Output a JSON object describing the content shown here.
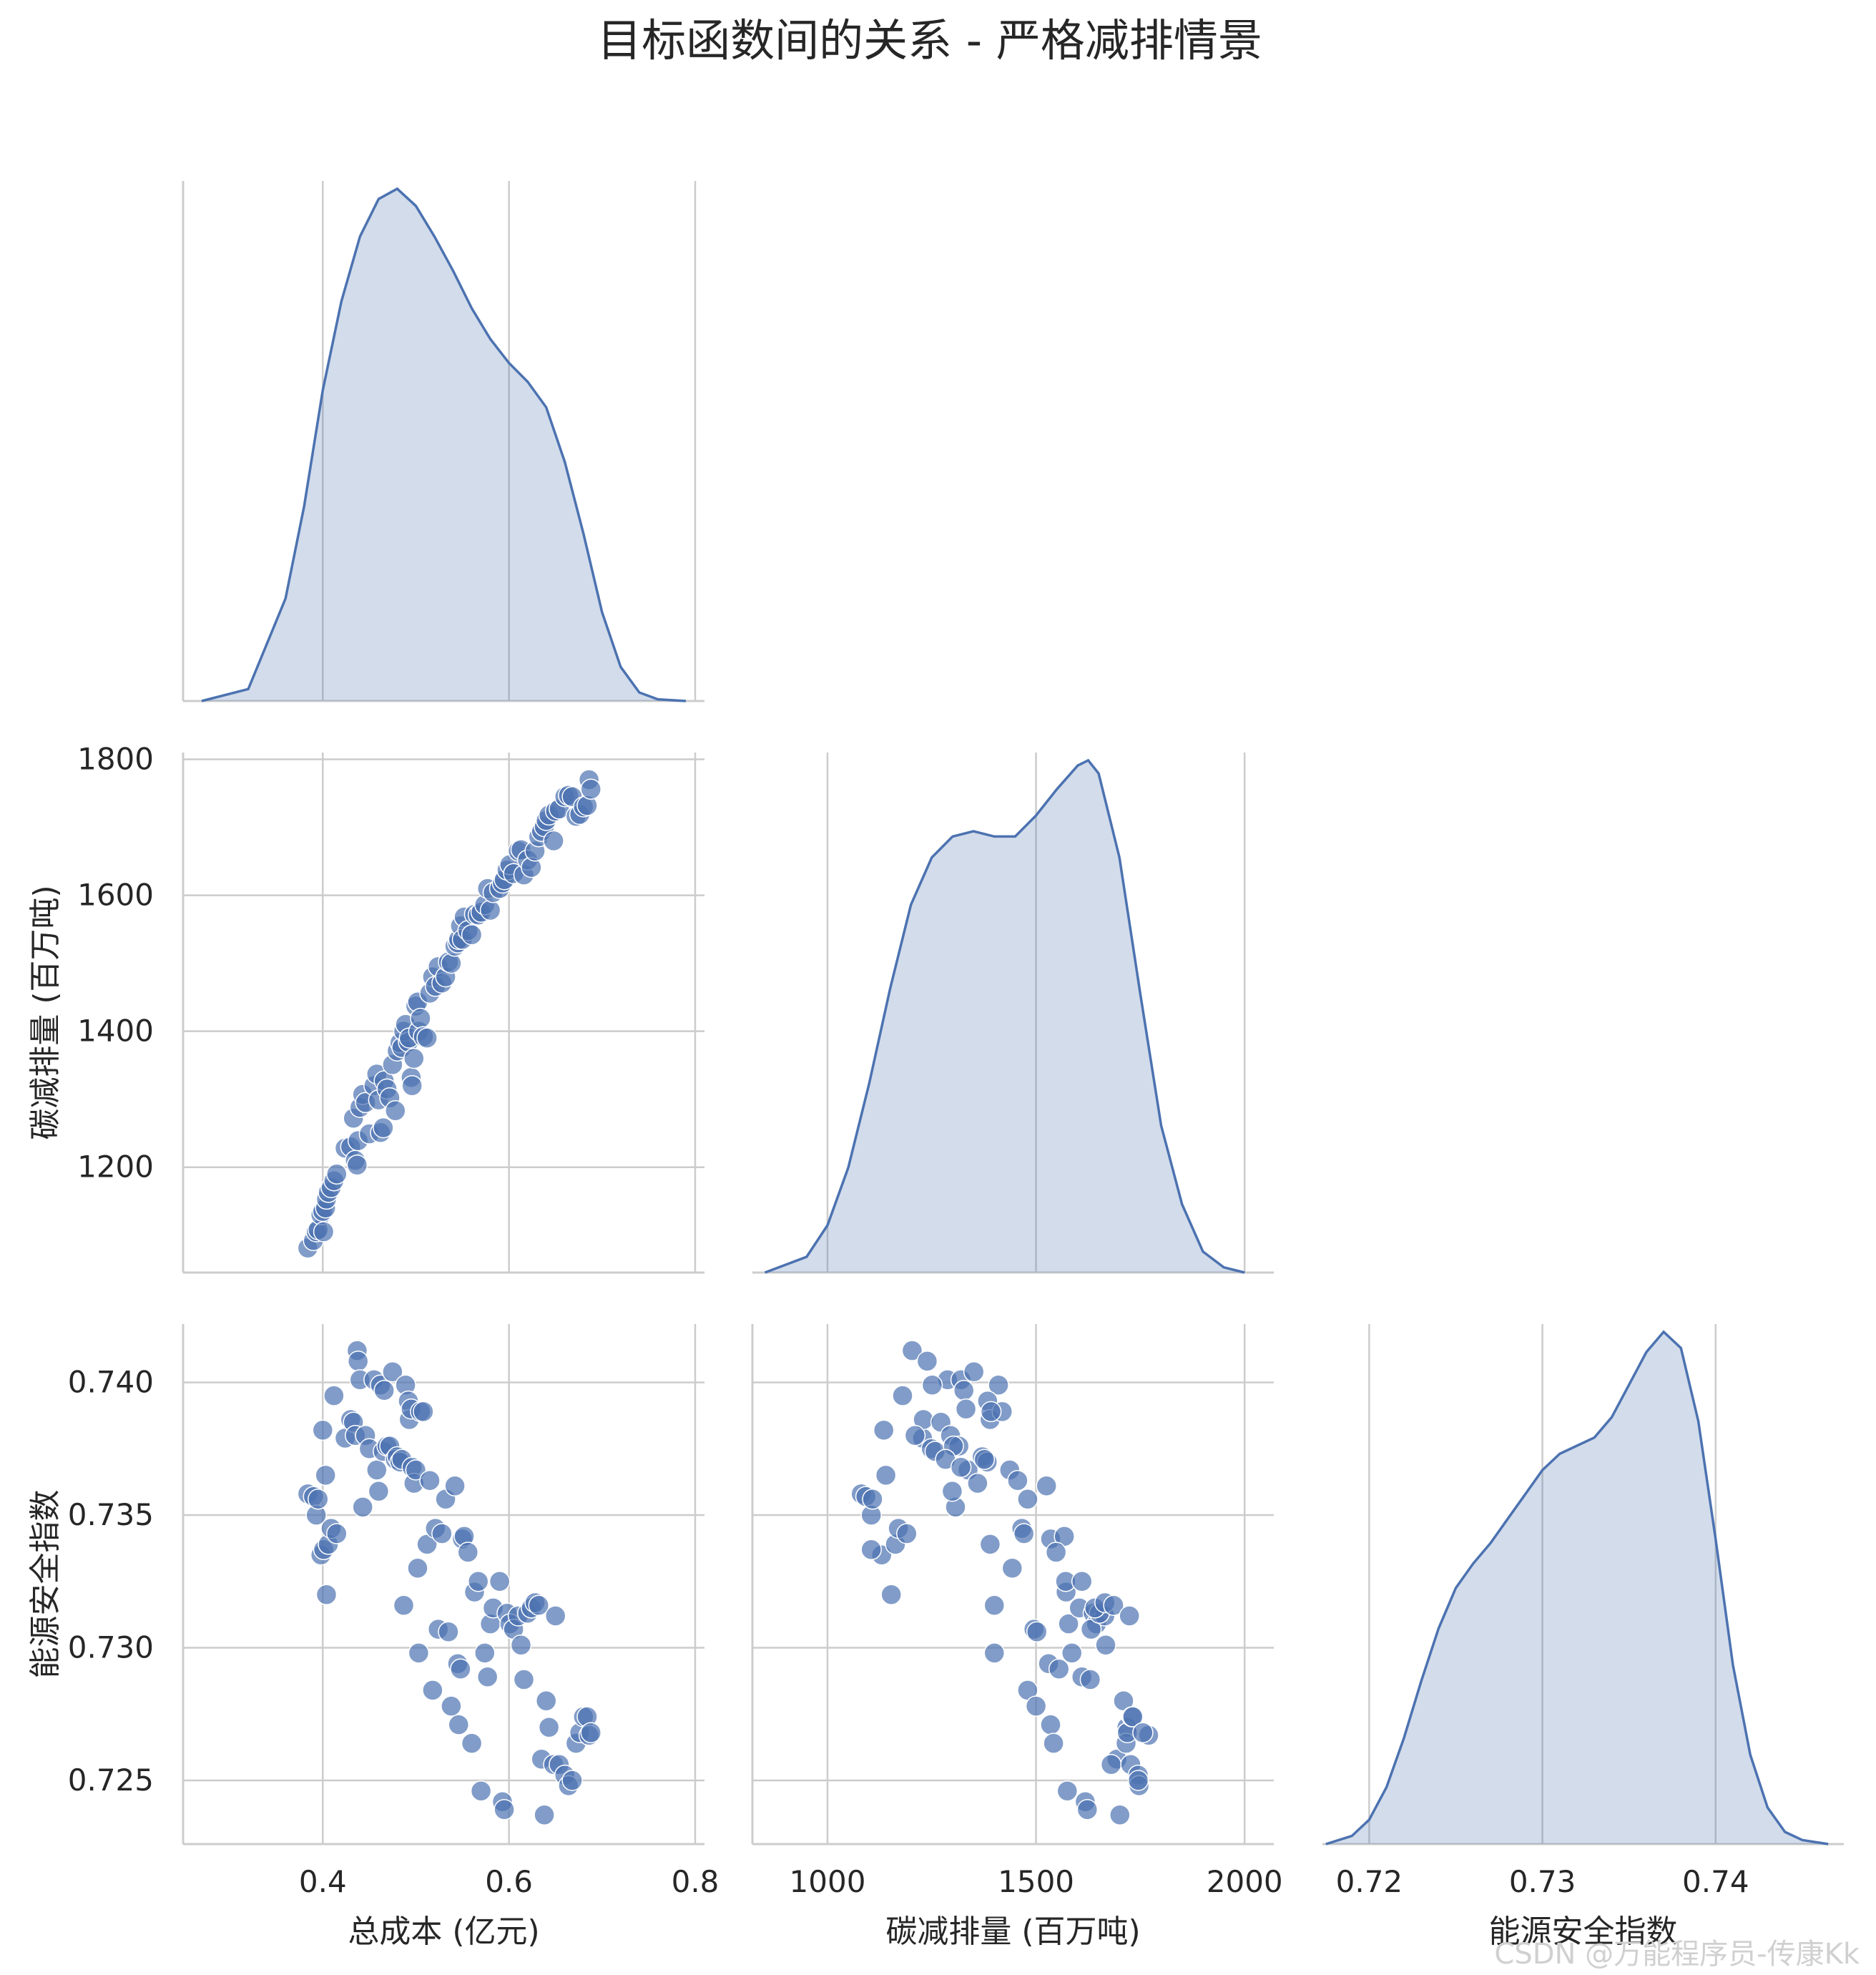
{
  "title": "目标函数间的关系 - 严格减排情景",
  "watermark": "CSDN @万能程序员-传康Kk",
  "colors": {
    "series": "#4c72b0",
    "grid": "#cccccc",
    "text": "#262626"
  },
  "chart_data": {
    "type": "pairplot",
    "variables": [
      "总成本 (亿元)",
      "碳减排量 (百万吨)",
      "能源安全指数"
    ],
    "corner": true,
    "diag_kind": "kde",
    "ranges": [
      [
        0.25,
        0.81
      ],
      [
        820,
        2070
      ],
      [
        0.7173,
        0.7474
      ]
    ],
    "ticks": [
      [
        0.4,
        0.6,
        0.8
      ],
      [
        1200,
        1400,
        1600,
        1800
      ],
      [
        0.725,
        0.73,
        0.735,
        0.74
      ]
    ],
    "x_tick_labels": [
      [
        "0.4",
        "0.6",
        "0.8"
      ],
      [
        "1000",
        "1500",
        "2000"
      ],
      [
        "0.72",
        "0.73",
        "0.74"
      ]
    ],
    "x_ticks": [
      [
        0.4,
        0.6,
        0.8
      ],
      [
        1000,
        1500,
        2000
      ],
      [
        0.72,
        0.73,
        0.74
      ]
    ],
    "y_tick_labels": {
      "row1": [
        "1200",
        "1400",
        "1600",
        "1800"
      ],
      "row2": [
        "0.725",
        "0.730",
        "0.735",
        "0.740"
      ]
    },
    "y_ticks": {
      "row1": [
        1200,
        1400,
        1600,
        1800
      ],
      "row2": [
        0.725,
        0.73,
        0.735,
        0.74
      ]
    },
    "row1_ylim": [
      1045,
      1810
    ],
    "row2_ylim": [
      0.7226,
      0.7422
    ],
    "diagonal_kde": [
      {
        "x": [
          0.27,
          0.32,
          0.36,
          0.38,
          0.4,
          0.42,
          0.44,
          0.46,
          0.48,
          0.5,
          0.52,
          0.54,
          0.56,
          0.58,
          0.6,
          0.62,
          0.64,
          0.66,
          0.68,
          0.7,
          0.72,
          0.74,
          0.76,
          0.79
        ],
        "density": [
          0.0,
          0.07,
          0.6,
          1.14,
          1.82,
          2.34,
          2.72,
          2.94,
          3.0,
          2.9,
          2.72,
          2.52,
          2.3,
          2.12,
          1.98,
          1.87,
          1.72,
          1.4,
          0.98,
          0.52,
          0.2,
          0.05,
          0.01,
          0.0
        ]
      },
      {
        "x": [
          850,
          950,
          1000,
          1050,
          1100,
          1150,
          1200,
          1250,
          1300,
          1350,
          1400,
          1450,
          1500,
          1550,
          1600,
          1625,
          1650,
          1700,
          1750,
          1800,
          1850,
          1900,
          1950,
          2000
        ],
        "density": [
          0.0,
          0.06,
          0.18,
          0.4,
          0.72,
          1.08,
          1.4,
          1.58,
          1.66,
          1.68,
          1.66,
          1.66,
          1.74,
          1.84,
          1.93,
          1.95,
          1.9,
          1.58,
          1.06,
          0.56,
          0.26,
          0.08,
          0.02,
          0.0
        ]
      },
      {
        "x": [
          0.7175,
          0.719,
          0.72,
          0.721,
          0.722,
          0.723,
          0.724,
          0.725,
          0.726,
          0.727,
          0.728,
          0.729,
          0.73,
          0.731,
          0.732,
          0.733,
          0.734,
          0.735,
          0.736,
          0.737,
          0.738,
          0.739,
          0.74,
          0.741,
          0.742,
          0.743,
          0.744,
          0.745,
          0.7465
        ],
        "density": [
          0.0,
          0.04,
          0.12,
          0.28,
          0.52,
          0.8,
          1.06,
          1.26,
          1.38,
          1.48,
          1.6,
          1.72,
          1.84,
          1.92,
          1.96,
          2.0,
          2.1,
          2.26,
          2.42,
          2.52,
          2.44,
          2.08,
          1.5,
          0.88,
          0.44,
          0.18,
          0.06,
          0.02,
          0.0
        ]
      }
    ],
    "points": [
      [
        0.384,
        1081,
        0.7358
      ],
      [
        0.39,
        1092,
        0.7357
      ],
      [
        0.393,
        1105,
        0.735
      ],
      [
        0.395,
        1108,
        0.7356
      ],
      [
        0.398,
        1130,
        0.7335
      ],
      [
        0.4,
        1135,
        0.7382
      ],
      [
        0.401,
        1105,
        0.7337
      ],
      [
        0.403,
        1140,
        0.7365
      ],
      [
        0.404,
        1153,
        0.732
      ],
      [
        0.406,
        1163,
        0.7339
      ],
      [
        0.409,
        1170,
        0.7345
      ],
      [
        0.412,
        1180,
        0.7395
      ],
      [
        0.415,
        1190,
        0.7343
      ],
      [
        0.424,
        1228,
        0.7379
      ],
      [
        0.43,
        1230,
        0.7386
      ],
      [
        0.433,
        1272,
        0.7385
      ],
      [
        0.435,
        1210,
        0.738
      ],
      [
        0.437,
        1203,
        0.7412
      ],
      [
        0.438,
        1239,
        0.7408
      ],
      [
        0.44,
        1288,
        0.7401
      ],
      [
        0.443,
        1307,
        0.7353
      ],
      [
        0.446,
        1295,
        0.738
      ],
      [
        0.45,
        1249,
        0.7375
      ],
      [
        0.455,
        1320,
        0.7401
      ],
      [
        0.458,
        1337,
        0.7367
      ],
      [
        0.46,
        1299,
        0.7359
      ],
      [
        0.462,
        1251,
        0.7399
      ],
      [
        0.465,
        1258,
        0.7374
      ],
      [
        0.466,
        1327,
        0.7397
      ],
      [
        0.469,
        1315,
        0.7376
      ],
      [
        0.472,
        1302,
        0.7376
      ],
      [
        0.475,
        1351,
        0.7404
      ],
      [
        0.478,
        1283,
        0.7371
      ],
      [
        0.48,
        1371,
        0.7372
      ],
      [
        0.483,
        1383,
        0.737
      ],
      [
        0.485,
        1376,
        0.7371
      ],
      [
        0.487,
        1400,
        0.7316
      ],
      [
        0.489,
        1410,
        0.7399
      ],
      [
        0.492,
        1384,
        0.7393
      ],
      [
        0.493,
        1390,
        0.7386
      ],
      [
        0.495,
        1332,
        0.739
      ],
      [
        0.496,
        1320,
        0.7368
      ],
      [
        0.498,
        1360,
        0.7362
      ],
      [
        0.5,
        1437,
        0.7367
      ],
      [
        0.502,
        1443,
        0.733
      ],
      [
        0.503,
        1400,
        0.7298
      ],
      [
        0.505,
        1419,
        0.7389
      ],
      [
        0.508,
        1392,
        0.7389
      ],
      [
        0.512,
        1390,
        0.7339
      ],
      [
        0.515,
        1456,
        0.7363
      ],
      [
        0.518,
        1480,
        0.7284
      ],
      [
        0.521,
        1466,
        0.7345
      ],
      [
        0.524,
        1495,
        0.7307
      ],
      [
        0.528,
        1471,
        0.7343
      ],
      [
        0.532,
        1480,
        0.7356
      ],
      [
        0.535,
        1502,
        0.7306
      ],
      [
        0.538,
        1500,
        0.7278
      ],
      [
        0.542,
        1525,
        0.7361
      ],
      [
        0.545,
        1530,
        0.7294
      ],
      [
        0.546,
        1535,
        0.7271
      ],
      [
        0.548,
        1555,
        0.7292
      ],
      [
        0.55,
        1535,
        0.7341
      ],
      [
        0.552,
        1568,
        0.7342
      ],
      [
        0.556,
        1548,
        0.7336
      ],
      [
        0.56,
        1542,
        0.7264
      ],
      [
        0.563,
        1572,
        0.7321
      ],
      [
        0.567,
        1571,
        0.7325
      ],
      [
        0.57,
        1575,
        0.7246
      ],
      [
        0.574,
        1586,
        0.7298
      ],
      [
        0.577,
        1610,
        0.7289
      ],
      [
        0.58,
        1578,
        0.7309
      ],
      [
        0.583,
        1604,
        0.7315
      ],
      [
        0.59,
        1610,
        0.7325
      ],
      [
        0.593,
        1618,
        0.7242
      ],
      [
        0.595,
        1623,
        0.7239
      ],
      [
        0.598,
        1637,
        0.7313
      ],
      [
        0.601,
        1645,
        0.7309
      ],
      [
        0.605,
        1632,
        0.7307
      ],
      [
        0.61,
        1665,
        0.7312
      ],
      [
        0.613,
        1667,
        0.7301
      ],
      [
        0.616,
        1630,
        0.7288
      ],
      [
        0.62,
        1652,
        0.7313
      ],
      [
        0.624,
        1641,
        0.7315
      ],
      [
        0.628,
        1665,
        0.7317
      ],
      [
        0.632,
        1686,
        0.7316
      ],
      [
        0.635,
        1694,
        0.7258
      ],
      [
        0.638,
        1701,
        0.7237
      ],
      [
        0.64,
        1710,
        0.728
      ],
      [
        0.643,
        1718,
        0.727
      ],
      [
        0.648,
        1680,
        0.7256
      ],
      [
        0.65,
        1724,
        0.7312
      ],
      [
        0.654,
        1727,
        0.7256
      ],
      [
        0.66,
        1745,
        0.7252
      ],
      [
        0.664,
        1747,
        0.7248
      ],
      [
        0.668,
        1745,
        0.725
      ],
      [
        0.672,
        1716,
        0.7264
      ],
      [
        0.676,
        1719,
        0.7268
      ],
      [
        0.68,
        1730,
        0.7274
      ],
      [
        0.684,
        1732,
        0.7274
      ],
      [
        0.686,
        1770,
        0.7267
      ],
      [
        0.688,
        1756,
        0.7268
      ]
    ]
  }
}
